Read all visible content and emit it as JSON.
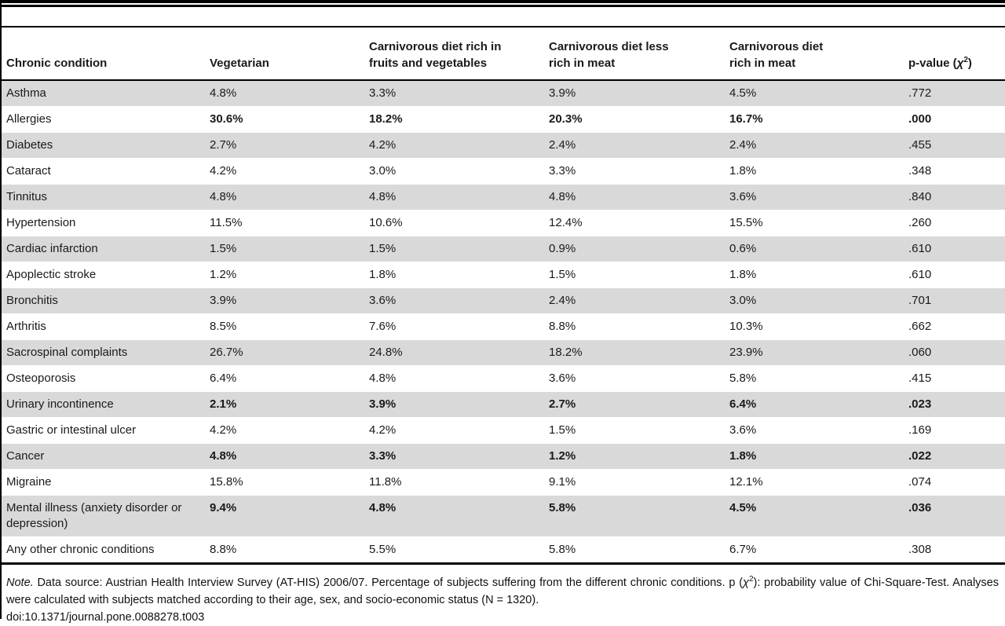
{
  "colors": {
    "stripe": "#d9d9d9",
    "rule": "#000000",
    "text": "#1a1a1a",
    "background": "#ffffff"
  },
  "table": {
    "header": {
      "col1": {
        "line1": "Chronic condition",
        "line2": ""
      },
      "col2": {
        "line1": "Vegetarian",
        "line2": ""
      },
      "col3": {
        "line1": "Carnivorous diet rich in",
        "line2": "fruits and vegetables"
      },
      "col4": {
        "line1": "Carnivorous diet less",
        "line2": "rich in meat"
      },
      "col5": {
        "line1": "Carnivorous diet",
        "line2": "rich in meat"
      },
      "col6": {
        "prefix": "p-value (",
        "chi": "χ",
        "sup": "2",
        "suffix": ")"
      }
    },
    "rows": [
      {
        "condition": "Asthma",
        "v1": "4.8%",
        "v2": "3.3%",
        "v3": "3.9%",
        "v4": "4.5%",
        "p": ".772",
        "emphasis": false
      },
      {
        "condition": "Allergies",
        "v1": "30.6%",
        "v2": "18.2%",
        "v3": "20.3%",
        "v4": "16.7%",
        "p": ".000",
        "emphasis": true
      },
      {
        "condition": "Diabetes",
        "v1": "2.7%",
        "v2": "4.2%",
        "v3": "2.4%",
        "v4": "2.4%",
        "p": ".455",
        "emphasis": false
      },
      {
        "condition": "Cataract",
        "v1": "4.2%",
        "v2": "3.0%",
        "v3": "3.3%",
        "v4": "1.8%",
        "p": ".348",
        "emphasis": false
      },
      {
        "condition": "Tinnitus",
        "v1": "4.8%",
        "v2": "4.8%",
        "v3": "4.8%",
        "v4": "3.6%",
        "p": ".840",
        "emphasis": false
      },
      {
        "condition": "Hypertension",
        "v1": "11.5%",
        "v2": "10.6%",
        "v3": "12.4%",
        "v4": "15.5%",
        "p": ".260",
        "emphasis": false
      },
      {
        "condition": "Cardiac infarction",
        "v1": "1.5%",
        "v2": "1.5%",
        "v3": "0.9%",
        "v4": "0.6%",
        "p": ".610",
        "emphasis": false
      },
      {
        "condition": "Apoplectic stroke",
        "v1": "1.2%",
        "v2": "1.8%",
        "v3": "1.5%",
        "v4": "1.8%",
        "p": ".610",
        "emphasis": false
      },
      {
        "condition": "Bronchitis",
        "v1": "3.9%",
        "v2": "3.6%",
        "v3": "2.4%",
        "v4": "3.0%",
        "p": ".701",
        "emphasis": false
      },
      {
        "condition": "Arthritis",
        "v1": "8.5%",
        "v2": "7.6%",
        "v3": "8.8%",
        "v4": "10.3%",
        "p": ".662",
        "emphasis": false
      },
      {
        "condition": "Sacrospinal complaints",
        "v1": "26.7%",
        "v2": "24.8%",
        "v3": "18.2%",
        "v4": "23.9%",
        "p": ".060",
        "emphasis": false
      },
      {
        "condition": "Osteoporosis",
        "v1": "6.4%",
        "v2": "4.8%",
        "v3": "3.6%",
        "v4": "5.8%",
        "p": ".415",
        "emphasis": false
      },
      {
        "condition": "Urinary incontinence",
        "v1": "2.1%",
        "v2": "3.9%",
        "v3": "2.7%",
        "v4": "6.4%",
        "p": ".023",
        "emphasis": true
      },
      {
        "condition": "Gastric or intestinal ulcer",
        "v1": "4.2%",
        "v2": "4.2%",
        "v3": "1.5%",
        "v4": "3.6%",
        "p": ".169",
        "emphasis": false
      },
      {
        "condition": "Cancer",
        "v1": "4.8%",
        "v2": "3.3%",
        "v3": "1.2%",
        "v4": "1.8%",
        "p": ".022",
        "emphasis": true
      },
      {
        "condition": "Migraine",
        "v1": "15.8%",
        "v2": "11.8%",
        "v3": "9.1%",
        "v4": "12.1%",
        "p": ".074",
        "emphasis": false
      },
      {
        "condition": "Mental illness (anxiety disorder or depression)",
        "v1": "9.4%",
        "v2": "4.8%",
        "v3": "5.8%",
        "v4": "4.5%",
        "p": ".036",
        "emphasis": true
      },
      {
        "condition": "Any other chronic conditions",
        "v1": "8.8%",
        "v2": "5.5%",
        "v3": "5.8%",
        "v4": "6.7%",
        "p": ".308",
        "emphasis": false
      }
    ]
  },
  "note": {
    "lead": "Note.",
    "seg1": " Data source: Austrian Health Interview Survey (AT-HIS) 2006/07. Percentage of subjects suffering from the different chronic conditions. p (",
    "chi": "χ",
    "sup": "2",
    "seg2": "): probability value of Chi-Square-Test. Analyses were calculated with subjects matched according to their age, sex, and socio-economic status (N = 1320).",
    "doi": "doi:10.1371/journal.pone.0088278.t003"
  }
}
